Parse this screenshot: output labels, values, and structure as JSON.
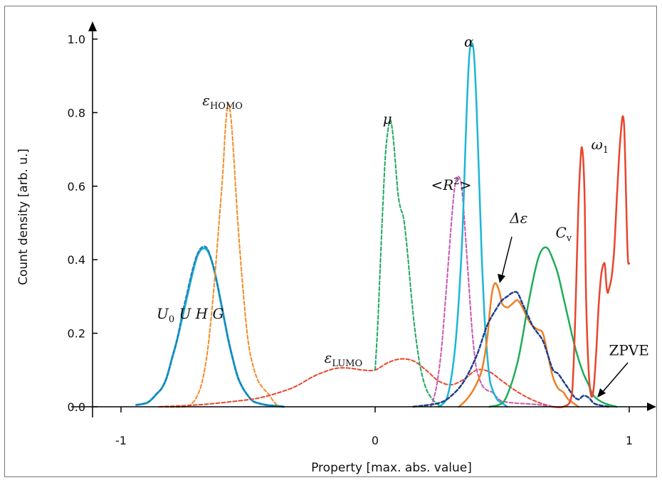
{
  "chart_data": {
    "type": "line",
    "xlabel": "Property [max. abs. value]",
    "ylabel": "Count density [arb. u.]",
    "xlim": [
      -1.12,
      1.12
    ],
    "ylim": [
      0,
      1.05
    ],
    "x_ticks": [
      {
        "v": -1,
        "label": "-1"
      },
      {
        "v": 0,
        "label": "0"
      },
      {
        "v": 1,
        "label": "1"
      }
    ],
    "y_ticks": [
      {
        "v": 0,
        "label": "0.0"
      },
      {
        "v": 0.2,
        "label": "0.2"
      },
      {
        "v": 0.4,
        "label": "0.4"
      },
      {
        "v": 0.6,
        "label": "0.6"
      },
      {
        "v": 0.8,
        "label": "0.8"
      },
      {
        "v": 1.0,
        "label": "1.0"
      }
    ],
    "series": [
      {
        "key": "U0",
        "color": "#1ab0cf",
        "dash": false,
        "width": 3,
        "x": [
          -0.94,
          -0.9,
          -0.88,
          -0.86,
          -0.84,
          -0.82,
          -0.8,
          -0.78,
          -0.76,
          -0.74,
          -0.72,
          -0.7,
          -0.68,
          -0.66,
          -0.64,
          -0.62,
          -0.6,
          -0.58,
          -0.56,
          -0.54,
          -0.52,
          -0.5,
          -0.48,
          -0.45,
          -0.42,
          -0.38,
          -0.36
        ],
        "y": [
          0.005,
          0.01,
          0.02,
          0.035,
          0.05,
          0.08,
          0.13,
          0.18,
          0.24,
          0.3,
          0.36,
          0.41,
          0.43,
          0.425,
          0.39,
          0.33,
          0.26,
          0.19,
          0.13,
          0.08,
          0.05,
          0.03,
          0.015,
          0.008,
          0.004,
          0.002,
          0.0
        ]
      },
      {
        "key": "U",
        "color": "#1f7ab8",
        "dash": true,
        "width": 2,
        "x": [
          -0.94,
          -0.9,
          -0.88,
          -0.86,
          -0.84,
          -0.82,
          -0.8,
          -0.78,
          -0.76,
          -0.74,
          -0.72,
          -0.7,
          -0.68,
          -0.66,
          -0.64,
          -0.62,
          -0.6,
          -0.58,
          -0.56,
          -0.54,
          -0.52,
          -0.5,
          -0.48,
          -0.45,
          -0.42,
          -0.38,
          -0.36
        ],
        "y": [
          0.005,
          0.01,
          0.02,
          0.035,
          0.05,
          0.08,
          0.13,
          0.18,
          0.25,
          0.31,
          0.37,
          0.415,
          0.435,
          0.43,
          0.39,
          0.33,
          0.26,
          0.19,
          0.13,
          0.08,
          0.05,
          0.03,
          0.015,
          0.008,
          0.004,
          0.002,
          0.0
        ]
      },
      {
        "key": "eps_homo",
        "color": "#f28c28",
        "dash": true,
        "width": 2,
        "x": [
          -0.85,
          -0.75,
          -0.72,
          -0.7,
          -0.68,
          -0.66,
          -0.64,
          -0.62,
          -0.6,
          -0.59,
          -0.58,
          -0.57,
          -0.56,
          -0.54,
          -0.52,
          -0.5,
          -0.48,
          -0.46,
          -0.44,
          -0.42,
          -0.4,
          -0.38
        ],
        "y": [
          0.0,
          0.0,
          0.01,
          0.03,
          0.07,
          0.15,
          0.28,
          0.45,
          0.63,
          0.75,
          0.82,
          0.8,
          0.72,
          0.5,
          0.32,
          0.18,
          0.11,
          0.07,
          0.05,
          0.035,
          0.015,
          0.0
        ]
      },
      {
        "key": "eps_lumo",
        "color": "#e8452c",
        "dash": true,
        "width": 2,
        "x": [
          -0.85,
          -0.7,
          -0.55,
          -0.45,
          -0.35,
          -0.3,
          -0.25,
          -0.2,
          -0.15,
          -0.1,
          -0.05,
          0.0,
          0.05,
          0.1,
          0.15,
          0.2,
          0.25,
          0.3,
          0.35,
          0.4,
          0.45,
          0.5,
          0.55,
          0.6,
          0.65,
          0.7
        ],
        "y": [
          0.0,
          0.005,
          0.015,
          0.025,
          0.045,
          0.06,
          0.08,
          0.095,
          0.105,
          0.105,
          0.1,
          0.1,
          0.12,
          0.13,
          0.125,
          0.1,
          0.07,
          0.06,
          0.075,
          0.1,
          0.095,
          0.07,
          0.045,
          0.025,
          0.01,
          0.0
        ]
      },
      {
        "key": "mu",
        "color": "#1ea860",
        "dash": true,
        "width": 2,
        "x": [
          0.0,
          0.01,
          0.02,
          0.03,
          0.04,
          0.05,
          0.06,
          0.07,
          0.08,
          0.09,
          0.1,
          0.11,
          0.12,
          0.13,
          0.14,
          0.15,
          0.16,
          0.17,
          0.18,
          0.2,
          0.22,
          0.24,
          0.26
        ],
        "y": [
          0.1,
          0.22,
          0.38,
          0.54,
          0.68,
          0.75,
          0.78,
          0.74,
          0.66,
          0.58,
          0.54,
          0.52,
          0.47,
          0.4,
          0.32,
          0.25,
          0.19,
          0.14,
          0.1,
          0.05,
          0.025,
          0.01,
          0.0
        ]
      },
      {
        "key": "R2",
        "color": "#c957b4",
        "dash": true,
        "width": 2,
        "x": [
          0.22,
          0.24,
          0.26,
          0.28,
          0.3,
          0.31,
          0.32,
          0.33,
          0.34,
          0.35,
          0.36,
          0.37,
          0.38,
          0.39,
          0.4,
          0.42,
          0.44,
          0.46,
          0.48,
          0.5,
          0.55,
          0.6,
          0.65,
          0.7
        ],
        "y": [
          0.0,
          0.05,
          0.15,
          0.32,
          0.5,
          0.58,
          0.62,
          0.625,
          0.6,
          0.52,
          0.42,
          0.32,
          0.22,
          0.15,
          0.1,
          0.06,
          0.045,
          0.04,
          0.025,
          0.015,
          0.01,
          0.008,
          0.005,
          0.0
        ]
      },
      {
        "key": "alpha",
        "color": "#1ab6d6",
        "dash": false,
        "width": 2.5,
        "x": [
          0.25,
          0.28,
          0.3,
          0.32,
          0.34,
          0.35,
          0.36,
          0.37,
          0.38,
          0.39,
          0.4,
          0.41,
          0.42,
          0.43,
          0.44,
          0.45,
          0.46,
          0.48,
          0.5,
          0.52
        ],
        "y": [
          0.0,
          0.02,
          0.08,
          0.2,
          0.42,
          0.6,
          0.8,
          0.95,
          0.99,
          0.95,
          0.8,
          0.6,
          0.4,
          0.25,
          0.15,
          0.08,
          0.05,
          0.02,
          0.01,
          0.0
        ]
      },
      {
        "key": "delta_eps",
        "color": "#f07f24",
        "dash": false,
        "width": 2.5,
        "x": [
          0.33,
          0.36,
          0.39,
          0.42,
          0.44,
          0.45,
          0.46,
          0.47,
          0.48,
          0.49,
          0.5,
          0.52,
          0.54,
          0.56,
          0.58,
          0.6,
          0.62,
          0.64,
          0.66,
          0.68,
          0.7,
          0.72,
          0.74,
          0.76,
          0.78,
          0.8
        ],
        "y": [
          0.0,
          0.02,
          0.05,
          0.1,
          0.18,
          0.25,
          0.31,
          0.335,
          0.33,
          0.31,
          0.28,
          0.27,
          0.28,
          0.29,
          0.27,
          0.24,
          0.22,
          0.21,
          0.2,
          0.14,
          0.08,
          0.05,
          0.04,
          0.02,
          0.01,
          0.0
        ]
      },
      {
        "key": "Cv",
        "color": "#1eac58",
        "dash": false,
        "width": 2.5,
        "x": [
          0.45,
          0.5,
          0.53,
          0.56,
          0.58,
          0.6,
          0.62,
          0.64,
          0.66,
          0.68,
          0.7,
          0.72,
          0.74,
          0.76,
          0.78,
          0.8,
          0.82,
          0.84,
          0.86,
          0.9,
          0.95
        ],
        "y": [
          0.0,
          0.01,
          0.05,
          0.12,
          0.19,
          0.27,
          0.34,
          0.4,
          0.43,
          0.43,
          0.4,
          0.36,
          0.3,
          0.24,
          0.18,
          0.13,
          0.09,
          0.06,
          0.03,
          0.01,
          0.0
        ]
      },
      {
        "key": "ZPVE",
        "color": "#1d3f8f",
        "dash": true,
        "width": 2.5,
        "x": [
          0.15,
          0.25,
          0.3,
          0.35,
          0.4,
          0.44,
          0.48,
          0.5,
          0.52,
          0.54,
          0.56,
          0.58,
          0.6,
          0.62,
          0.64,
          0.66,
          0.68,
          0.7,
          0.72,
          0.74,
          0.76,
          0.78,
          0.8,
          0.82,
          0.84,
          0.86,
          0.88,
          0.92
        ],
        "y": [
          0.0,
          0.01,
          0.03,
          0.07,
          0.14,
          0.22,
          0.27,
          0.29,
          0.3,
          0.31,
          0.31,
          0.28,
          0.25,
          0.22,
          0.2,
          0.18,
          0.14,
          0.1,
          0.09,
          0.07,
          0.05,
          0.03,
          0.02,
          0.03,
          0.025,
          0.01,
          0.005,
          0.0
        ]
      },
      {
        "key": "omega1",
        "color": "#e8452c",
        "dash": false,
        "width": 2.5,
        "x": [
          0.7,
          0.74,
          0.77,
          0.78,
          0.79,
          0.8,
          0.81,
          0.815,
          0.82,
          0.825,
          0.83,
          0.84,
          0.85,
          0.86,
          0.87,
          0.88,
          0.89,
          0.9,
          0.905,
          0.91,
          0.915,
          0.92,
          0.93,
          0.94,
          0.95,
          0.96,
          0.97,
          0.975,
          0.98,
          0.985,
          0.99,
          0.995,
          1.0
        ],
        "y": [
          0.0,
          0.0,
          0.02,
          0.1,
          0.3,
          0.55,
          0.69,
          0.7,
          0.66,
          0.55,
          0.3,
          0.1,
          0.03,
          0.05,
          0.15,
          0.28,
          0.36,
          0.39,
          0.38,
          0.33,
          0.31,
          0.32,
          0.35,
          0.42,
          0.55,
          0.68,
          0.77,
          0.79,
          0.76,
          0.65,
          0.5,
          0.4,
          0.39
        ]
      }
    ],
    "annotations": [
      {
        "key": "UHG",
        "x": -0.86,
        "y": 0.24
      },
      {
        "key": "eps_homo",
        "x": -0.68,
        "y": 0.82
      },
      {
        "key": "eps_lumo",
        "x": -0.2,
        "y": 0.12
      },
      {
        "key": "mu",
        "x": 0.03,
        "y": 0.77
      },
      {
        "key": "R2",
        "x": 0.22,
        "y": 0.59
      },
      {
        "key": "alpha",
        "x": 0.35,
        "y": 0.98
      },
      {
        "key": "delta_eps",
        "x": 0.53,
        "y": 0.5
      },
      {
        "key": "Cv",
        "x": 0.71,
        "y": 0.46
      },
      {
        "key": "omega1",
        "x": 0.85,
        "y": 0.7
      },
      {
        "key": "ZPVE",
        "x": 0.92,
        "y": 0.14
      }
    ],
    "labels": {
      "UHG": {
        "main": "U",
        "sub": "0",
        "rest": " U H G"
      },
      "eps_homo": {
        "main": "ε",
        "sub": "HOMO"
      },
      "eps_lumo": {
        "main": "ε",
        "sub": "LUMO"
      },
      "mu": {
        "main": "μ"
      },
      "R2": {
        "main": "<R",
        "sup": "2",
        "rest": ">"
      },
      "alpha": {
        "main": "α"
      },
      "delta_eps": {
        "main": "Δε"
      },
      "Cv": {
        "main": "C",
        "sub": "v"
      },
      "omega1": {
        "main": "ω",
        "sub": "1"
      },
      "ZPVE": {
        "main": "ZPVE"
      }
    }
  }
}
